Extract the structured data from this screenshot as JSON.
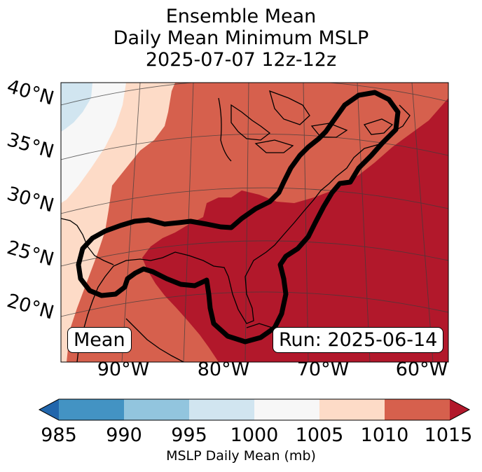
{
  "title": {
    "line1": "Ensemble Mean",
    "line2": "Daily Mean Minimum MSLP",
    "line3": "2025-07-07 12z-12z"
  },
  "map": {
    "lat_labels": [
      "40°N",
      "35°N",
      "30°N",
      "25°N",
      "20°N"
    ],
    "lon_labels": [
      "90°W",
      "80°W",
      "70°W",
      "60°W"
    ],
    "mean_box": "Mean",
    "run_box": "Run: 2025-06-14",
    "outline_color": "#000000",
    "coast_color": "#000000"
  },
  "colorbar": {
    "ticks": [
      "985",
      "990",
      "995",
      "1000",
      "1005",
      "1010",
      "1015"
    ],
    "label": "MSLP Daily Mean (mb)",
    "colors": {
      "under": "#2166ac",
      "985-990": "#4393c3",
      "990-995": "#92c5de",
      "995-1000": "#d1e5f0",
      "1000-1005": "#f7f7f7",
      "1005-1010": "#fddbc7",
      "1010-1015": "#d6604d",
      "over": "#b2182b"
    }
  }
}
